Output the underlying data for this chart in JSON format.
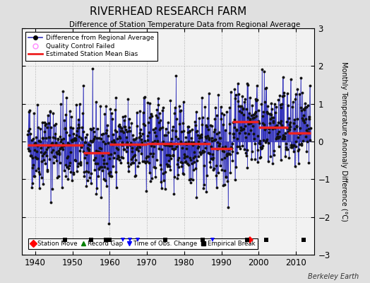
{
  "title": "RIVERHEAD RESEARCH FARM",
  "subtitle": "Difference of Station Temperature Data from Regional Average",
  "ylabel": "Monthly Temperature Anomaly Difference (°C)",
  "ylim": [
    -3,
    3
  ],
  "xlim": [
    1936.5,
    2015
  ],
  "xticks": [
    1940,
    1950,
    1960,
    1970,
    1980,
    1990,
    2000,
    2010
  ],
  "yticks": [
    -3,
    -2,
    -1,
    0,
    1,
    2,
    3
  ],
  "background_color": "#e0e0e0",
  "plot_bg_color": "#f2f2f2",
  "line_color": "#3333bb",
  "dot_color": "#111111",
  "bias_color": "#ee2222",
  "qc_color": "#ff88ff",
  "seed": 42,
  "start_year": 1938,
  "end_year": 2013,
  "bias_segments": [
    {
      "start": 1938.0,
      "end": 1953.0,
      "value": -0.1
    },
    {
      "start": 1953.0,
      "end": 1960.0,
      "value": -0.3
    },
    {
      "start": 1960.0,
      "end": 1970.0,
      "value": -0.08
    },
    {
      "start": 1970.0,
      "end": 1987.0,
      "value": -0.05
    },
    {
      "start": 1987.0,
      "end": 1993.0,
      "value": -0.18
    },
    {
      "start": 1993.0,
      "end": 2000.0,
      "value": 0.52
    },
    {
      "start": 2000.0,
      "end": 2008.0,
      "value": 0.38
    },
    {
      "start": 2008.0,
      "end": 2014.0,
      "value": 0.22
    }
  ],
  "station_moves": [
    1997.7
  ],
  "record_gaps": [],
  "tobs_changes": [
    1963.5,
    1965.5,
    1967.5,
    1987.7
  ],
  "empirical_breaks": [
    1948,
    1955,
    1959,
    1960,
    1975,
    1985,
    1997,
    2002,
    2012
  ],
  "marker_y": -2.6,
  "footer": "Berkeley Earth"
}
